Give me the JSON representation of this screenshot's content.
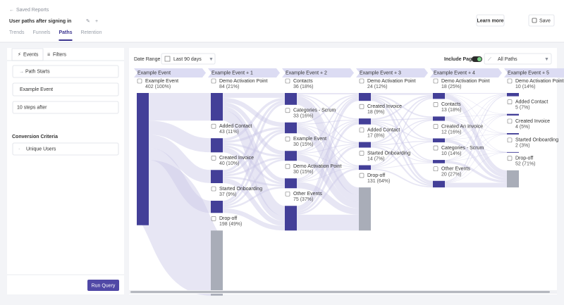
{
  "header": {
    "breadcrumb": "Saved Reports",
    "title": "User paths after signing in",
    "tabs": [
      "Trends",
      "Funnels",
      "Paths",
      "Retention"
    ],
    "active_tab": 2,
    "learn_more": "Learn more",
    "save": "Save"
  },
  "left_panel": {
    "tabs": [
      "Events",
      "Filters"
    ],
    "path_start_label": "Path Starts",
    "start_event": "Example Event",
    "steps": "10 steps after",
    "conversion_title": "Conversion Criteria",
    "conversion_value": "Unique Users",
    "run": "Run Query"
  },
  "toolbar": {
    "date_range_label": "Date Range",
    "date_range": "Last 90 days",
    "include_pages": "Include Pages",
    "paths_filter": "All Paths"
  },
  "columns": [
    {
      "header": "Example Event",
      "nodes": [
        {
          "label": "Example Event",
          "count": {
            "value": 402,
            "label": "402 (100%)"
          },
          "color": "#433f98"
        }
      ]
    },
    {
      "header": "Example Event + 1",
      "nodes": [
        {
          "label": "Demo Activation Point",
          "count": {
            "value": 84,
            "label": "84 (21%)"
          },
          "color": "#433f98"
        },
        {
          "label": "Added Contact",
          "count": {
            "value": 43,
            "label": "43 (11%)"
          },
          "color": "#433f98"
        },
        {
          "label": "Created Invoice",
          "count": {
            "value": 40,
            "label": "40 (10%)"
          },
          "color": "#433f98"
        },
        {
          "label": "Started Onboarding",
          "count": {
            "value": 37,
            "label": "37 (9%)"
          },
          "color": "#433f98"
        },
        {
          "label": "Drop-off",
          "count": {
            "value": 198,
            "label": "198 (49%)"
          },
          "color": "#a9adb8"
        }
      ]
    },
    {
      "header": "Example Event + 2",
      "nodes": [
        {
          "label": "Contacts",
          "count": {
            "value": 36,
            "label": "36 (18%)"
          },
          "color": "#433f98"
        },
        {
          "label": "Categories - Scrum",
          "count": {
            "value": 33,
            "label": "33 (16%)"
          },
          "color": "#433f98"
        },
        {
          "label": "Example Event",
          "count": {
            "value": 30,
            "label": "30 (15%)"
          },
          "color": "#433f98"
        },
        {
          "label": "Demo Activation Point",
          "count": {
            "value": 30,
            "label": "30 (15%)"
          },
          "color": "#433f98"
        },
        {
          "label": "Other Events",
          "count": {
            "value": 75,
            "label": "75 (37%)"
          },
          "color": "#433f98"
        }
      ]
    },
    {
      "header": "Example Event + 3",
      "nodes": [
        {
          "label": "Demo Activation Point",
          "count": {
            "value": 24,
            "label": "24 (12%)"
          },
          "color": "#433f98"
        },
        {
          "label": "Created Invoice",
          "count": {
            "value": 18,
            "label": "18 (9%)"
          },
          "color": "#433f98"
        },
        {
          "label": "Added Contact",
          "count": {
            "value": 17,
            "label": "17 (8%)"
          },
          "color": "#433f98"
        },
        {
          "label": "Started Onboarding",
          "count": {
            "value": 14,
            "label": "14 (7%)"
          },
          "color": "#433f98"
        },
        {
          "label": "Drop-off",
          "count": {
            "value": 131,
            "label": "131 (64%)"
          },
          "color": "#a9adb8"
        }
      ]
    },
    {
      "header": "Example Event + 4",
      "nodes": [
        {
          "label": "Demo Activation Point",
          "count": {
            "value": 18,
            "label": "18 (25%)"
          },
          "color": "#433f98"
        },
        {
          "label": "Contacts",
          "count": {
            "value": 13,
            "label": "13 (18%)"
          },
          "color": "#433f98"
        },
        {
          "label": "Created An Invoice",
          "count": {
            "value": 12,
            "label": "12 (16%)"
          },
          "color": "#433f98"
        },
        {
          "label": "Categories - Scrum",
          "count": {
            "value": 10,
            "label": "10 (14%)"
          },
          "color": "#433f98"
        },
        {
          "label": "Other Events",
          "count": {
            "value": 20,
            "label": "20 (27%)"
          },
          "color": "#433f98"
        }
      ]
    },
    {
      "header": "Example Event + 5",
      "nodes": [
        {
          "label": "Demo Activation Point",
          "count": {
            "value": 10,
            "label": "10 (14%)"
          },
          "color": "#433f98"
        },
        {
          "label": "Added Contact",
          "count": {
            "value": 5,
            "label": "5 (7%)"
          },
          "color": "#433f98"
        },
        {
          "label": "Created Invoice",
          "count": {
            "value": 4,
            "label": "4 (5%)"
          },
          "color": "#433f98"
        },
        {
          "label": "Started Onboarding",
          "count": {
            "value": 2,
            "label": "2 (3%)"
          },
          "color": "#433f98"
        },
        {
          "label": "Drop-off",
          "count": {
            "value": 52,
            "label": "52 (71%)"
          },
          "color": "#a9adb8"
        }
      ]
    }
  ]
}
